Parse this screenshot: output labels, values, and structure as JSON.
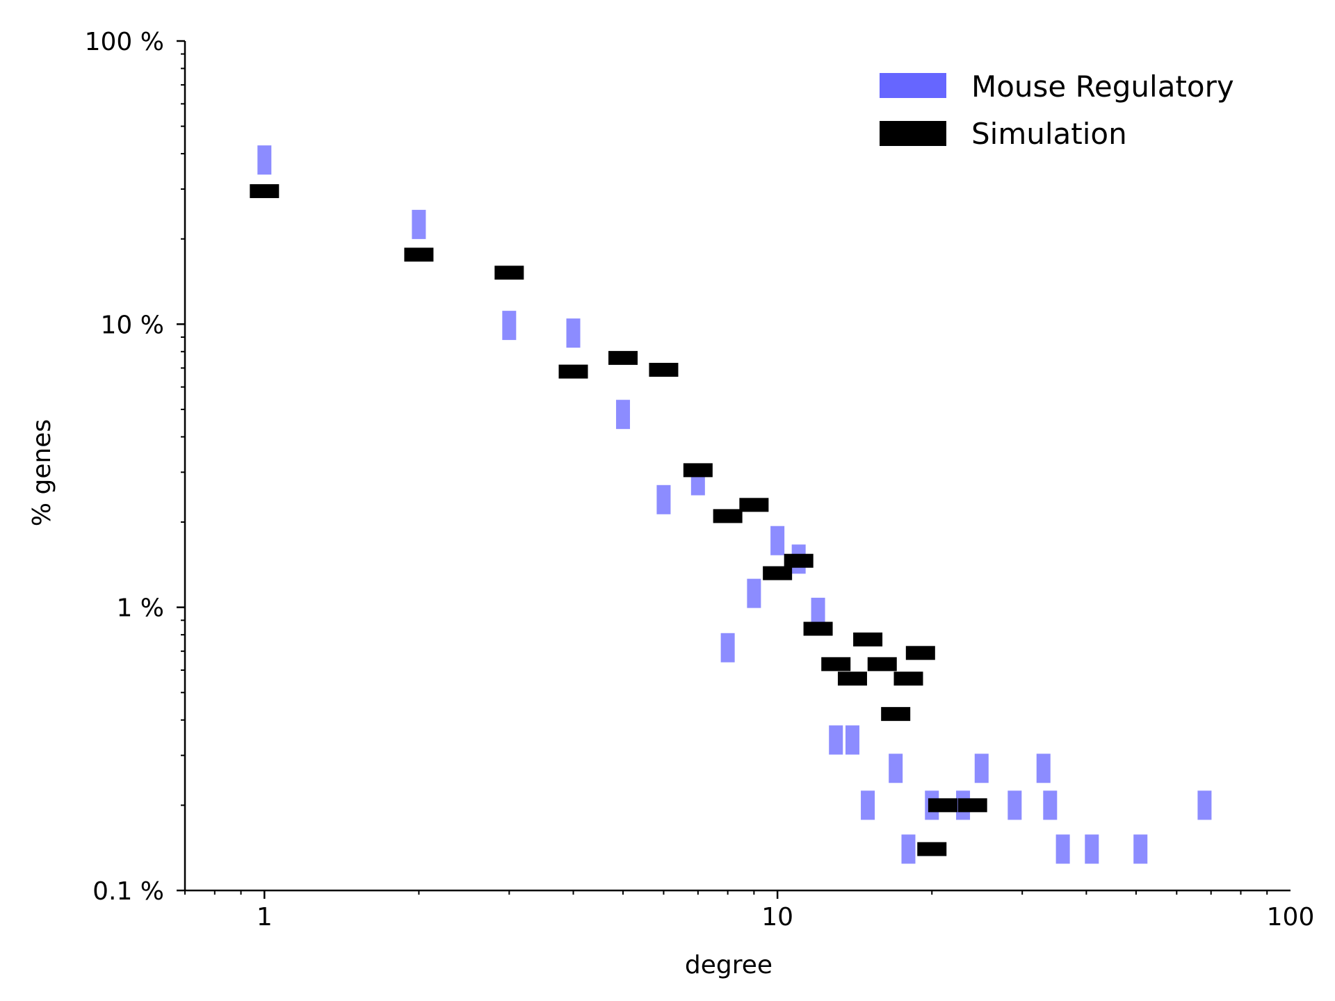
{
  "chart_data": {
    "type": "scatter",
    "xlabel": "degree",
    "ylabel": "% genes",
    "x_scale": "log",
    "y_scale": "log",
    "xlim": [
      0.7,
      100
    ],
    "ylim": [
      0.1,
      100
    ],
    "x_ticks": [
      {
        "value": 1,
        "label": "1"
      },
      {
        "value": 10,
        "label": "10"
      },
      {
        "value": 100,
        "label": "100"
      }
    ],
    "y_ticks": [
      {
        "value": 0.1,
        "label": "0.1 %"
      },
      {
        "value": 1,
        "label": "1 %"
      },
      {
        "value": 10,
        "label": "10 %"
      },
      {
        "value": 100,
        "label": "100 %"
      }
    ],
    "grid": false,
    "legend_position": "top-right",
    "series": [
      {
        "name": "Mouse Regulatory",
        "color": "#6666ff",
        "marker": "vertical-bar",
        "points": [
          [
            1,
            38
          ],
          [
            2,
            22.5
          ],
          [
            3,
            9.9
          ],
          [
            4,
            9.3
          ],
          [
            5,
            4.8
          ],
          [
            6,
            2.4
          ],
          [
            7,
            2.8
          ],
          [
            8,
            0.72
          ],
          [
            9,
            1.12
          ],
          [
            10,
            1.72
          ],
          [
            11,
            1.48
          ],
          [
            12,
            0.96
          ],
          [
            13,
            0.34
          ],
          [
            14,
            0.34
          ],
          [
            15,
            0.2
          ],
          [
            17,
            0.27
          ],
          [
            18,
            0.14
          ],
          [
            20,
            0.2
          ],
          [
            23,
            0.2
          ],
          [
            25,
            0.27
          ],
          [
            29,
            0.2
          ],
          [
            33,
            0.27
          ],
          [
            34,
            0.2
          ],
          [
            36,
            0.14
          ],
          [
            41,
            0.14
          ],
          [
            51,
            0.14
          ],
          [
            68,
            0.2
          ]
        ]
      },
      {
        "name": "Simulation",
        "color": "#000000",
        "marker": "horizontal-bar",
        "points": [
          [
            1,
            29.5
          ],
          [
            2,
            17.6
          ],
          [
            3,
            15.2
          ],
          [
            4,
            6.8
          ],
          [
            5,
            7.6
          ],
          [
            6,
            6.9
          ],
          [
            7,
            3.05
          ],
          [
            8,
            2.1
          ],
          [
            9,
            2.3
          ],
          [
            10,
            1.32
          ],
          [
            11,
            1.46
          ],
          [
            12,
            0.84
          ],
          [
            13,
            0.63
          ],
          [
            14,
            0.56
          ],
          [
            15,
            0.77
          ],
          [
            16,
            0.63
          ],
          [
            17,
            0.42
          ],
          [
            18,
            0.56
          ],
          [
            19,
            0.69
          ],
          [
            20,
            0.14
          ],
          [
            21,
            0.2
          ],
          [
            24,
            0.2
          ]
        ]
      }
    ]
  }
}
